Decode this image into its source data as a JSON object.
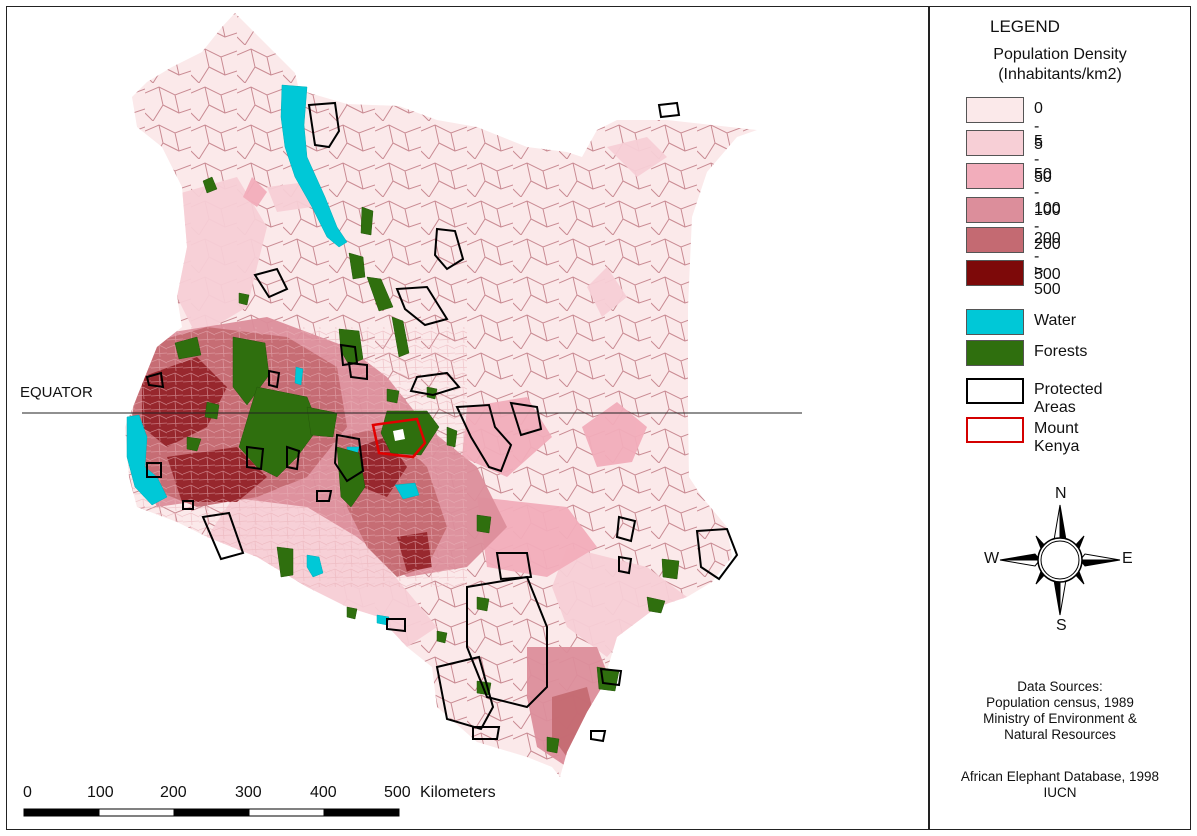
{
  "legend": {
    "title": "LEGEND",
    "density_title_line1": "Population Density",
    "density_title_line2": "(Inhabitants/km2)",
    "density_classes": [
      {
        "label": "0 - 5",
        "color": "#fbe9ea"
      },
      {
        "label": "5 - 50",
        "color": "#f7cfd6"
      },
      {
        "label": "50 - 100",
        "color": "#f2adbb"
      },
      {
        "label": "100 - 200",
        "color": "#dc8e9b"
      },
      {
        "label": "200 - 500",
        "color": "#c46a72"
      },
      {
        "label": "> 500",
        "color": "#7d0909"
      }
    ],
    "features": [
      {
        "label": "Water",
        "color": "#00c8d7",
        "style": "fill"
      },
      {
        "label": "Forests",
        "color": "#2f6f0e",
        "style": "fill"
      },
      {
        "label": "Protected Areas",
        "color": "#000000",
        "style": "outline"
      },
      {
        "label": "Mount Kenya",
        "color": "#d40000",
        "style": "outline"
      }
    ]
  },
  "compass": {
    "n": "N",
    "s": "S",
    "e": "E",
    "w": "W"
  },
  "sources": {
    "line1": "Data Sources:",
    "line2": "Population census, 1989",
    "line3": "Ministry of Environment &",
    "line4": "Natural Resources",
    "line5": "African Elephant Database, 1998",
    "line6": "IUCN"
  },
  "map": {
    "equator_label": "EQUATOR",
    "scale_ticks": [
      "0",
      "100",
      "200",
      "300",
      "400",
      "500"
    ],
    "scale_unit": "Kilometers"
  }
}
